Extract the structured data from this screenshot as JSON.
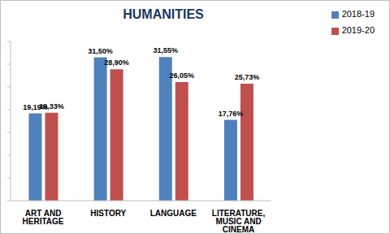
{
  "chart_data": {
    "type": "bar",
    "title": "HUMANITIES",
    "categories": [
      "ART AND HERITAGE",
      "HISTORY",
      "LANGUAGE",
      "LITERATURE, MUSIC AND CINEMA"
    ],
    "series": [
      {
        "name": "2018-19",
        "color": "#4f81bd",
        "values": [
          19.19,
          31.5,
          31.55,
          17.76
        ],
        "value_labels": [
          "19,19%",
          "31,50%",
          "31,55%",
          "17,76%"
        ]
      },
      {
        "name": "2019-20",
        "color": "#c0504d",
        "values": [
          19.33,
          28.9,
          26.05,
          25.73
        ],
        "value_labels": [
          "19,33%",
          "28,90%",
          "26,05%",
          "25,73%"
        ]
      }
    ],
    "ylim": [
      0,
      35
    ],
    "yticks": [
      0,
      5,
      10,
      15,
      20,
      25,
      30,
      35
    ],
    "grid": false,
    "legend": "top-right",
    "data_labels": true,
    "tick_labels": "x"
  }
}
